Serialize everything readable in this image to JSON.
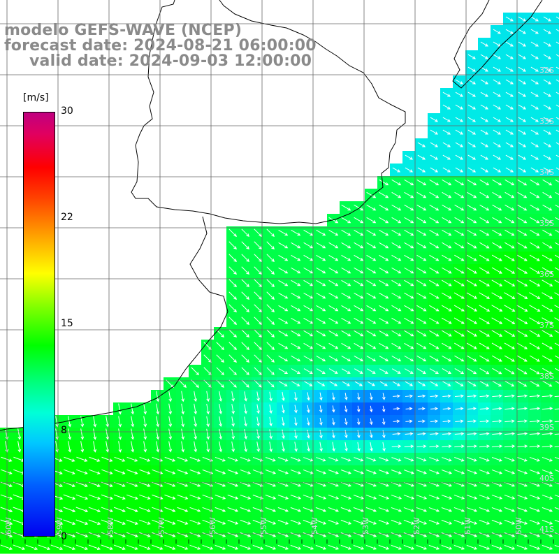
{
  "title": {
    "model": "modelo GEFS-WAVE (NCEP)",
    "forecast": "forecast date: 2024-08-21 06:00:00",
    "valid": "valid date: 2024-09-03 12:00:00"
  },
  "colorbar": {
    "unit": "[m/s]",
    "ticks": [
      "30",
      "22",
      "15",
      "8",
      "0"
    ],
    "tick_values": [
      30,
      22,
      15,
      8,
      0
    ],
    "min": 0,
    "max": 30,
    "colors": [
      "#0000f0",
      "#0060ff",
      "#00c8ff",
      "#00ffd8",
      "#00ff80",
      "#00ff00",
      "#80ff00",
      "#ffff00",
      "#ffa000",
      "#ff4000",
      "#ff0000",
      "#e00060",
      "#c00080"
    ]
  },
  "map": {
    "land_color": "#ffffff",
    "coast_color": "#000000",
    "grid_color": "#000000",
    "arrow_color": "#ffffff",
    "lat_labels": [
      "32S",
      "33S",
      "34S",
      "35S",
      "36S",
      "37S",
      "38S",
      "39S",
      "40S",
      "41S"
    ],
    "lon_labels": [
      "60W",
      "59W",
      "58W",
      "57W",
      "56W",
      "55W",
      "54W",
      "53W",
      "52W",
      "51W",
      "50W"
    ]
  }
}
